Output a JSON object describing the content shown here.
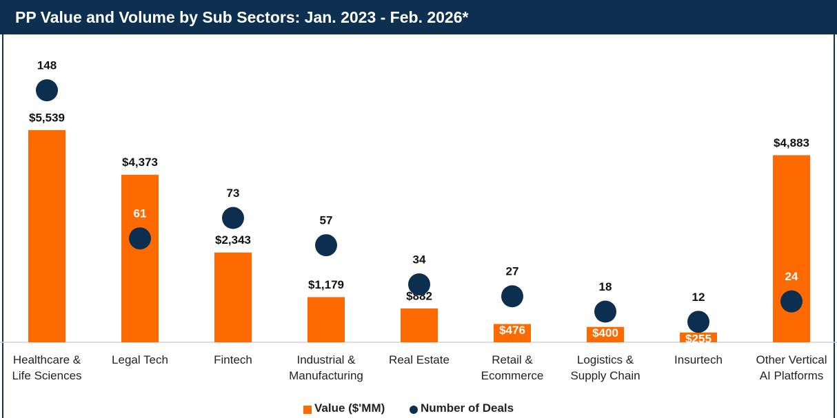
{
  "chart_data": {
    "type": "bar",
    "title": "PP Value and Volume by Sub Sectors: Jan. 2023 - Feb. 2026*",
    "categories": [
      "Healthcare &\nLife Sciences",
      "Legal Tech",
      "Fintech",
      "Industrial &\nManufacturing",
      "Real Estate",
      "Retail &\nEcommerce",
      "Logistics &\nSupply Chain",
      "Insurtech",
      "Other Vertical\nAI Platforms"
    ],
    "ylim": [
      0,
      8000
    ],
    "y2lim": [
      0,
      180
    ],
    "series": [
      {
        "name": "Value ($'MM)",
        "color": "#ff6a00",
        "type": "bar",
        "values": [
          5539,
          4373,
          2343,
          1179,
          882,
          476,
          400,
          255,
          4883
        ],
        "value_labels": [
          "$5,539",
          "$4,373",
          "$2,343",
          "$1,179",
          "$882",
          "$476",
          "$400",
          "$255",
          "$4,883"
        ]
      },
      {
        "name": "Number of Deals",
        "color": "#0d2f4f",
        "type": "scatter",
        "axis": "y2",
        "values": [
          148,
          61,
          73,
          57,
          34,
          27,
          18,
          12,
          24
        ]
      }
    ]
  }
}
